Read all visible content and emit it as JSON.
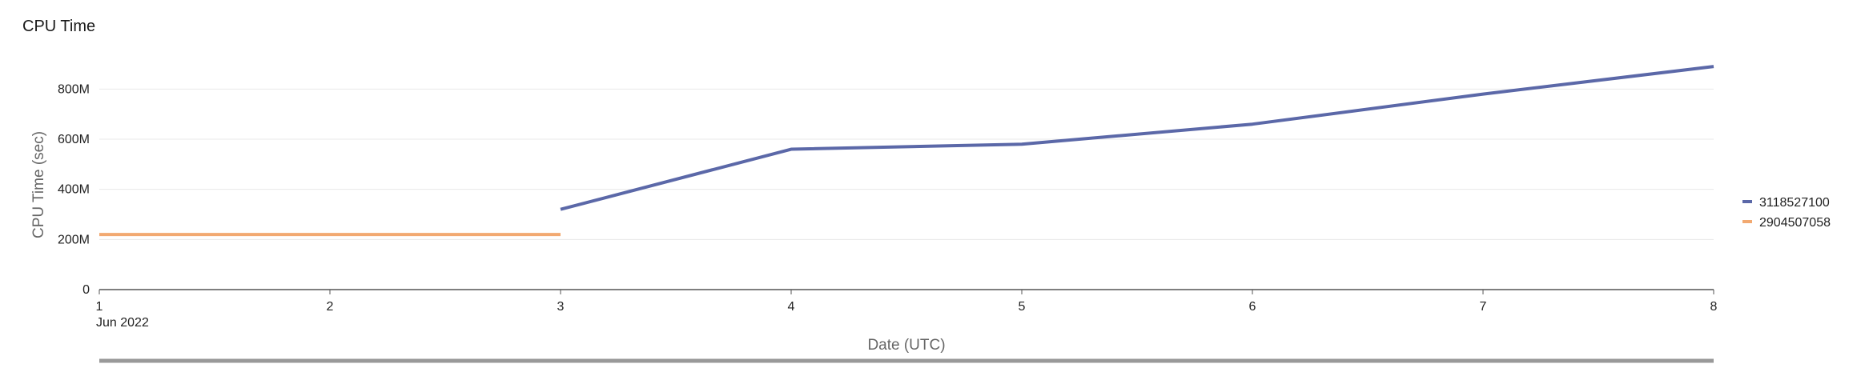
{
  "chart_data": {
    "type": "line",
    "title": "CPU Time",
    "xlabel": "Date (UTC)",
    "ylabel": "CPU Time (sec)",
    "x": [
      "2022-06-01",
      "2022-06-02",
      "2022-06-03",
      "2022-06-04",
      "2022-06-05",
      "2022-06-06",
      "2022-06-07",
      "2022-06-08"
    ],
    "x_tick_labels": [
      "1",
      "2",
      "3",
      "4",
      "5",
      "6",
      "7",
      "8"
    ],
    "x_tick_sublabel": "Jun 2022",
    "y_tick_labels": [
      "0",
      "200M",
      "400M",
      "600M",
      "800M"
    ],
    "ylim": [
      0,
      900000000
    ],
    "y_ticks": [
      0,
      200000000,
      400000000,
      600000000,
      800000000
    ],
    "grid": true,
    "legend_position": "right",
    "series": [
      {
        "name": "3118527100",
        "color": "#5B68A8",
        "points": [
          {
            "x": "2022-06-03",
            "y": 320000000
          },
          {
            "x": "2022-06-04",
            "y": 560000000
          },
          {
            "x": "2022-06-05",
            "y": 580000000
          },
          {
            "x": "2022-06-06",
            "y": 660000000
          },
          {
            "x": "2022-06-07",
            "y": 780000000
          },
          {
            "x": "2022-06-08",
            "y": 890000000
          }
        ]
      },
      {
        "name": "2904507058",
        "color": "#F2A971",
        "points": [
          {
            "x": "2022-06-01",
            "y": 220000000
          },
          {
            "x": "2022-06-03",
            "y": 220000000
          }
        ]
      }
    ]
  }
}
